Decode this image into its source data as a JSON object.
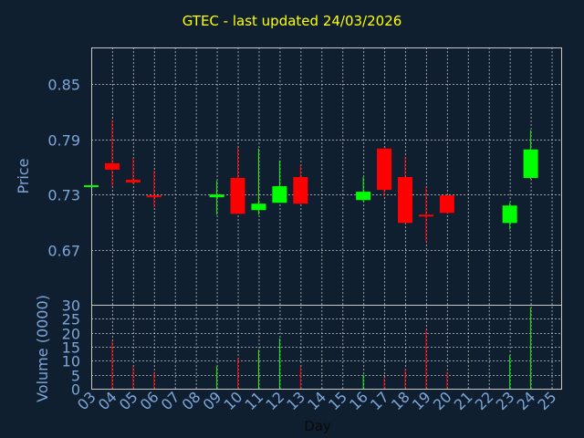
{
  "chart_data": {
    "type": "candlestick",
    "title": "GTEC - last updated 24/03/2026",
    "xlabel": "Day",
    "price_ylabel": "Price",
    "volume_ylabel": "Volume (0000)",
    "x_ticks": [
      "03",
      "04",
      "05",
      "06",
      "07",
      "08",
      "09",
      "10",
      "11",
      "12",
      "13",
      "14",
      "15",
      "16",
      "17",
      "18",
      "19",
      "20",
      "21",
      "22",
      "23",
      "24",
      "25"
    ],
    "price_ticks": [
      "0.67",
      "0.73",
      "0.79",
      "0.85"
    ],
    "price_ylim": [
      0.61,
      0.89
    ],
    "volume_ticks": [
      "0",
      "5",
      "10",
      "15",
      "20",
      "25",
      "30"
    ],
    "volume_ylim": [
      0,
      30
    ],
    "grid": true,
    "colors": {
      "up": "#00ff00",
      "down": "#ff0000",
      "background": "#0f1f30",
      "axis_text": "#7da7d9",
      "title": "#ffff00",
      "grid": "#c8c8c8"
    },
    "candles": [
      {
        "day": "03",
        "open": 0.739,
        "high": 0.74,
        "low": 0.738,
        "close": 0.74,
        "volume": 0
      },
      {
        "day": "04",
        "open": 0.764,
        "high": 0.811,
        "low": 0.739,
        "close": 0.757,
        "volume": 17
      },
      {
        "day": "05",
        "open": 0.746,
        "high": 0.77,
        "low": 0.741,
        "close": 0.743,
        "volume": 8
      },
      {
        "day": "06",
        "open": 0.729,
        "high": 0.756,
        "low": 0.716,
        "close": 0.727,
        "volume": 6
      },
      {
        "day": "09",
        "open": 0.727,
        "high": 0.745,
        "low": 0.708,
        "close": 0.73,
        "volume": 8
      },
      {
        "day": "10",
        "open": 0.748,
        "high": 0.781,
        "low": 0.709,
        "close": 0.709,
        "volume": 11
      },
      {
        "day": "11",
        "open": 0.713,
        "high": 0.78,
        "low": 0.708,
        "close": 0.72,
        "volume": 14
      },
      {
        "day": "12",
        "open": 0.721,
        "high": 0.767,
        "low": 0.721,
        "close": 0.739,
        "volume": 18
      },
      {
        "day": "13",
        "open": 0.749,
        "high": 0.762,
        "low": 0.719,
        "close": 0.72,
        "volume": 8
      },
      {
        "day": "16",
        "open": 0.724,
        "high": 0.749,
        "low": 0.722,
        "close": 0.733,
        "volume": 5
      },
      {
        "day": "17",
        "open": 0.78,
        "high": 0.78,
        "low": 0.728,
        "close": 0.735,
        "volume": 4
      },
      {
        "day": "18",
        "open": 0.749,
        "high": 0.771,
        "low": 0.698,
        "close": 0.699,
        "volume": 7
      },
      {
        "day": "19",
        "open": 0.708,
        "high": 0.738,
        "low": 0.678,
        "close": 0.707,
        "volume": 21
      },
      {
        "day": "20",
        "open": 0.729,
        "high": 0.73,
        "low": 0.71,
        "close": 0.71,
        "volume": 6
      },
      {
        "day": "23",
        "open": 0.699,
        "high": 0.721,
        "low": 0.692,
        "close": 0.718,
        "volume": 12
      },
      {
        "day": "24",
        "open": 0.748,
        "high": 0.8,
        "low": 0.747,
        "close": 0.779,
        "volume": 29
      }
    ]
  }
}
